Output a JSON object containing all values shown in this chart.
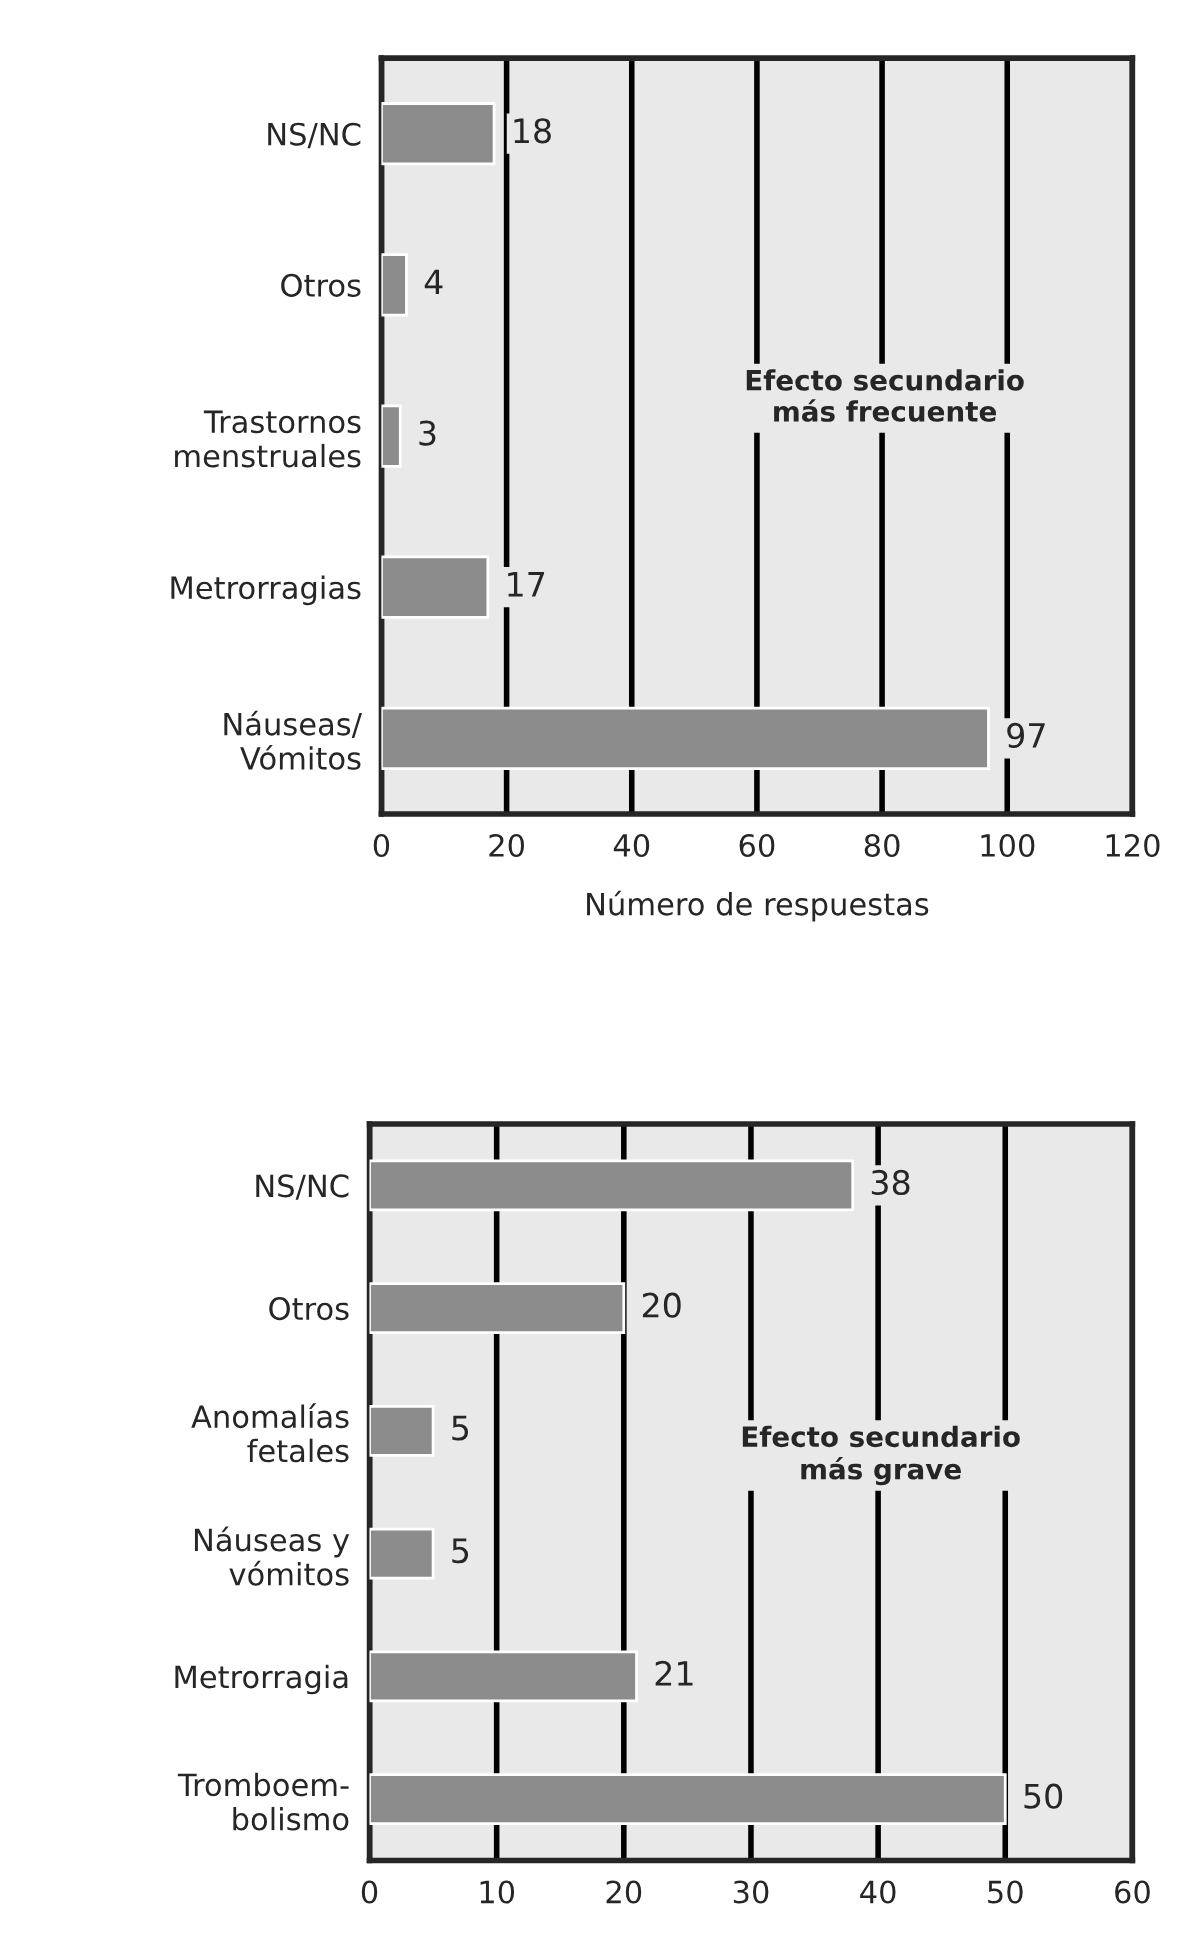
{
  "chart_data": [
    {
      "type": "bar",
      "orientation": "horizontal",
      "categories": [
        "NS/NC",
        "Otros",
        "Trastornos\nmenstruales",
        "Metrorragias",
        "Náuseas/\nVómitos"
      ],
      "series": [
        {
          "color": "#8c8c8c",
          "values": [
            18,
            4,
            3,
            17,
            97
          ]
        }
      ],
      "xlabel": "Número de respuestas",
      "xlim": [
        0,
        120
      ],
      "xticks": [
        0,
        20,
        40,
        60,
        80,
        100,
        120
      ],
      "grid": "x",
      "data_labels": true,
      "annotations": [
        "Efecto secundario\nmás frecuente"
      ]
    },
    {
      "type": "bar",
      "orientation": "horizontal",
      "categories": [
        "NS/NC",
        "Otros",
        "Anomalías\nfetales",
        "Náuseas y\nvómitos",
        "Metrorragia",
        "Tromboem-\nbolismo"
      ],
      "series": [
        {
          "color": "#8c8c8c",
          "values": [
            38,
            20,
            5,
            5,
            21,
            50
          ]
        }
      ],
      "xlim": [
        0,
        60
      ],
      "xticks": [
        0,
        10,
        20,
        30,
        40,
        50,
        60
      ],
      "grid": "x",
      "data_labels": true,
      "annotations": [
        "Efecto secundario\nmás grave"
      ]
    }
  ]
}
